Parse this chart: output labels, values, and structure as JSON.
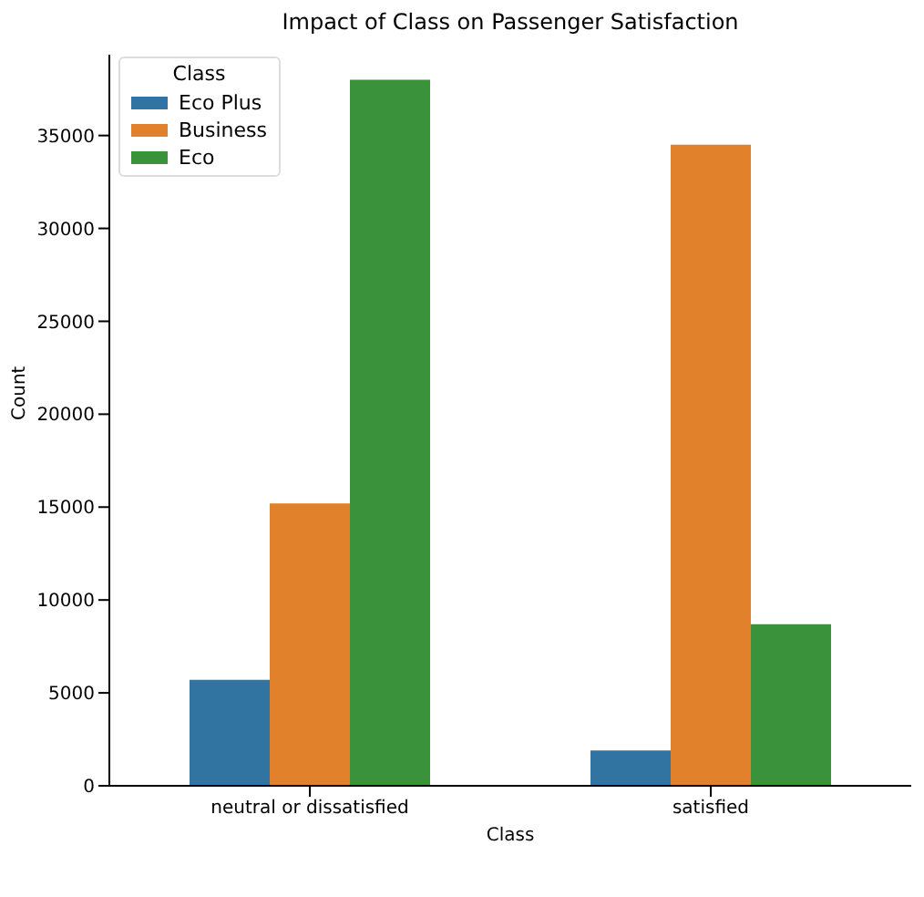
{
  "chart_data": {
    "type": "bar",
    "title": "Impact of Class on Passenger Satisfaction",
    "xlabel": "Class",
    "ylabel": "Count",
    "legend_title": "Class",
    "categories": [
      "neutral or dissatisfied",
      "satisfied"
    ],
    "series": [
      {
        "name": "Eco Plus",
        "color": "#3274a1",
        "values": [
          5700,
          1900
        ]
      },
      {
        "name": "Business",
        "color": "#e1812c",
        "values": [
          15200,
          34500
        ]
      },
      {
        "name": "Eco",
        "color": "#3a923a",
        "values": [
          38000,
          8700
        ]
      }
    ],
    "ylim": [
      0,
      39350
    ],
    "yticks": [
      0,
      5000,
      10000,
      15000,
      20000,
      25000,
      30000,
      35000
    ],
    "grid": false,
    "legend": "top left"
  }
}
